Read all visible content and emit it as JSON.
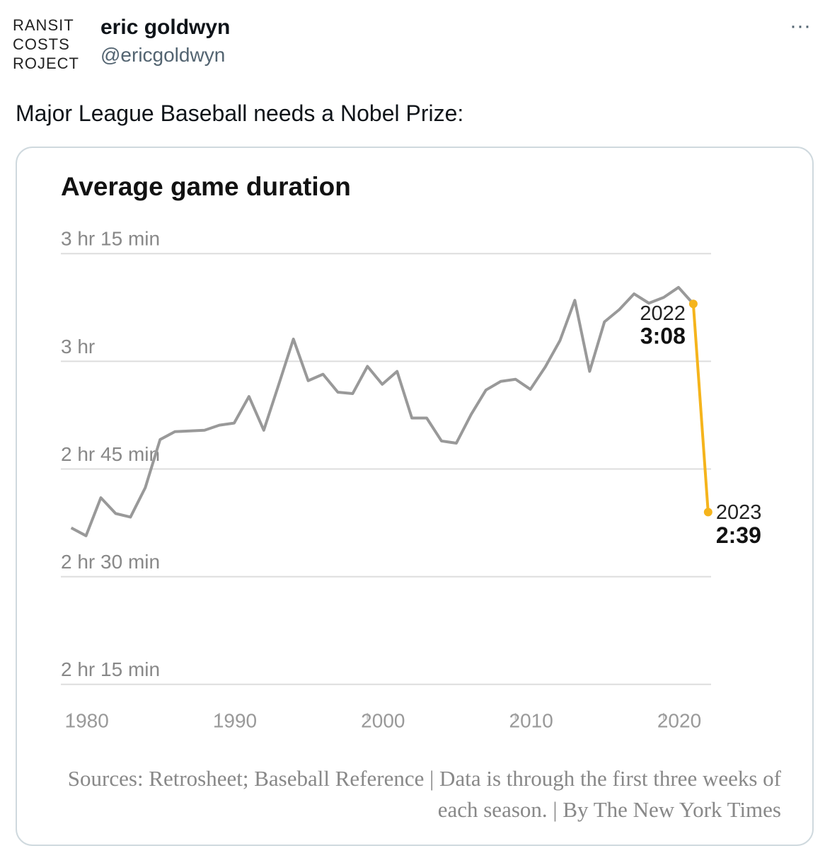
{
  "header": {
    "avatar_lines": [
      "RANSIT",
      "COSTS",
      "ROJECT"
    ],
    "name": "eric goldwyn",
    "handle": "@ericgoldwyn",
    "more": "···"
  },
  "tweet_text": "Major League Baseball needs a Nobel Prize:",
  "chart_data": {
    "type": "line",
    "title": "Average game duration",
    "series": [
      {
        "color": "#999999",
        "x": [
          1980,
          1981,
          1982,
          1983,
          1984,
          1985,
          1986,
          1987,
          1988,
          1989,
          1990,
          1991,
          1992,
          1993,
          1994,
          1995,
          1996,
          1997,
          1998,
          1999,
          2000,
          2001,
          2002,
          2003,
          2004,
          2005,
          2006,
          2007,
          2008,
          2009,
          2010,
          2011,
          2012,
          2013,
          2014,
          2015,
          2016,
          2017,
          2018,
          2019,
          2020,
          2021,
          2022
        ],
        "values": [
          156.8,
          155.7,
          161.0,
          158.8,
          158.3,
          162.4,
          169.1,
          170.2,
          170.3,
          170.4,
          171.1,
          171.4,
          175.1,
          170.4,
          176.7,
          183.1,
          177.3,
          178.2,
          175.7,
          175.5,
          179.3,
          176.8,
          178.6,
          172.1,
          172.1,
          168.9,
          168.6,
          172.6,
          176.0,
          177.2,
          177.5,
          176.1,
          179.2,
          182.9,
          188.5,
          178.6,
          185.5,
          187.2,
          189.4,
          188.1,
          188.9,
          190.3,
          188
        ]
      },
      {
        "color": "#f5b41c",
        "x": [
          2022,
          2023
        ],
        "values": [
          188,
          159
        ],
        "value_labels": [
          "3:08",
          "2:39"
        ]
      }
    ],
    "xlim": [
      1979.3,
      2023.2
    ],
    "xticks": [
      1980,
      1990,
      2000,
      2010,
      2020
    ],
    "ylim": [
      133,
      197
    ],
    "yticks": [
      {
        "value": 135,
        "label": "2 hr 15 min"
      },
      {
        "value": 150,
        "label": "2 hr 30 min"
      },
      {
        "value": 165,
        "label": "2 hr 45 min"
      },
      {
        "value": 180,
        "label": "3 hr"
      },
      {
        "value": 195,
        "label": "3 hr 15 min"
      }
    ],
    "grid": true,
    "source": "Sources: Retrosheet; Baseball Reference | Data is through the first three weeks of each season. | By The New York Times"
  }
}
